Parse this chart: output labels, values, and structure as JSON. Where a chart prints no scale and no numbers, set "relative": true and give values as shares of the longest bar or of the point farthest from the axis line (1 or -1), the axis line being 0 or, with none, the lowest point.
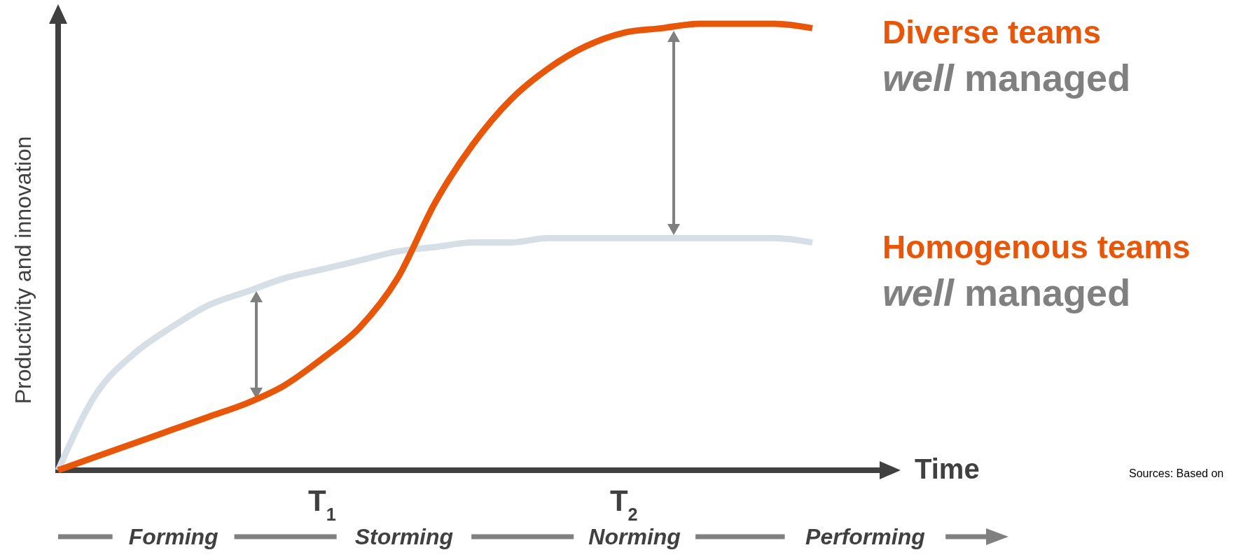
{
  "chart_data": {
    "type": "line",
    "relative": true,
    "xlabel": "Time",
    "ylabel": "Productivity and innovation",
    "categories": [
      null,
      null,
      null,
      null,
      null,
      null,
      null,
      "T$_{1}$",
      null,
      null,
      null,
      null,
      null,
      null,
      null,
      "T$_{2}$",
      null,
      null,
      null,
      null,
      null
    ],
    "series": [
      {
        "name": "Diverse teams\nwell managed",
        "color": "#e8560a",
        "values": [
          0,
          0.03,
          0.06,
          0.09,
          0.12,
          0.15,
          0.19,
          0.25,
          0.32,
          0.43,
          0.6,
          0.73,
          0.83,
          0.9,
          0.95,
          0.98,
          0.99,
          1.0,
          1.0,
          1.0,
          0.99
        ]
      },
      {
        "name": "Homogenous teams\nwell managed",
        "color": "#d6dfe6",
        "values": [
          0,
          0.17,
          0.26,
          0.32,
          0.37,
          0.4,
          0.43,
          0.45,
          0.47,
          0.49,
          0.5,
          0.51,
          0.51,
          0.52,
          0.52,
          0.52,
          0.52,
          0.52,
          0.52,
          0.52,
          0.51
        ]
      }
    ],
    "annotations": [
      "Forming",
      "Storming",
      "Norming",
      "Performing",
      "Sources: Based on"
    ],
    "legend": false,
    "grid": false,
    "marker": "none",
    "line_style": "solid"
  }
}
